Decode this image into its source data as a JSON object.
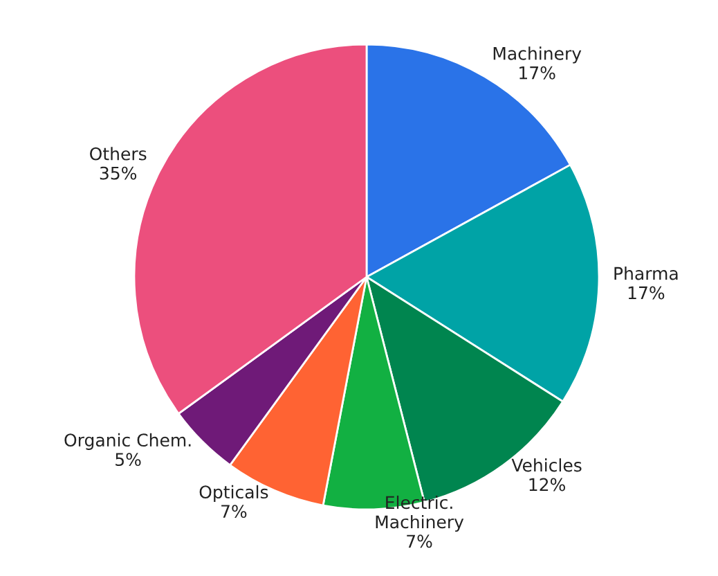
{
  "chart_data": {
    "type": "pie",
    "categories": [
      "Machinery",
      "Pharma",
      "Vehicles",
      "Electric.\nMachinery",
      "Opticals",
      "Organic Chem.",
      "Others"
    ],
    "values": [
      17,
      17,
      12,
      7,
      7,
      5,
      35
    ],
    "value_labels": [
      "17%",
      "17%",
      "12%",
      "7%",
      "7%",
      "5%",
      "35%"
    ],
    "colors": [
      "#2a73e8",
      "#00a3a6",
      "#00854f",
      "#12b042",
      "#ff6333",
      "#6f1a78",
      "#ec4f7d"
    ],
    "legend": false
  }
}
